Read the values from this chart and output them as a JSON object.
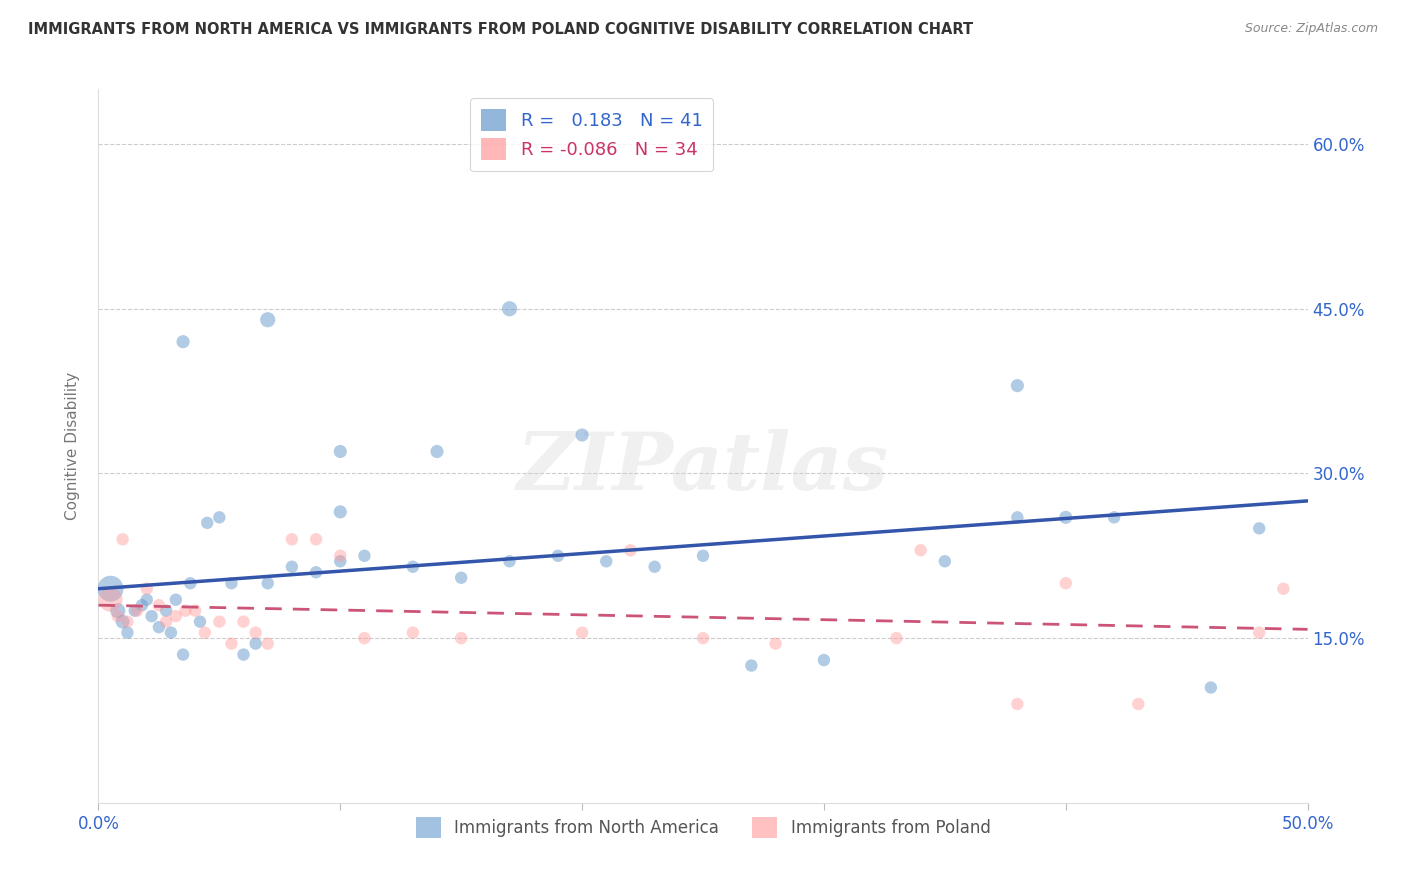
{
  "title": "IMMIGRANTS FROM NORTH AMERICA VS IMMIGRANTS FROM POLAND COGNITIVE DISABILITY CORRELATION CHART",
  "source": "Source: ZipAtlas.com",
  "ylabel": "Cognitive Disability",
  "xlim": [
    0.0,
    0.5
  ],
  "ylim": [
    0.0,
    0.65
  ],
  "grid_color": "#cccccc",
  "background_color": "#ffffff",
  "blue_color": "#6699cc",
  "pink_color": "#ff9999",
  "trendline_blue": "#3355aa",
  "trendline_pink": "#cc5577",
  "R_blue": 0.183,
  "N_blue": 41,
  "R_pink": -0.086,
  "N_pink": 34,
  "legend_label_blue": "Immigrants from North America",
  "legend_label_pink": "Immigrants from Poland",
  "blue_x": [
    0.005,
    0.008,
    0.01,
    0.012,
    0.015,
    0.018,
    0.02,
    0.022,
    0.025,
    0.028,
    0.03,
    0.032,
    0.035,
    0.038,
    0.042,
    0.045,
    0.05,
    0.055,
    0.06,
    0.065,
    0.07,
    0.08,
    0.09,
    0.1,
    0.11,
    0.13,
    0.15,
    0.17,
    0.19,
    0.21,
    0.23,
    0.25,
    0.27,
    0.3,
    0.35,
    0.38,
    0.42,
    0.46,
    0.48,
    0.07,
    0.17
  ],
  "blue_y": [
    0.195,
    0.175,
    0.165,
    0.155,
    0.175,
    0.18,
    0.185,
    0.17,
    0.16,
    0.175,
    0.155,
    0.185,
    0.135,
    0.2,
    0.165,
    0.255,
    0.26,
    0.2,
    0.135,
    0.145,
    0.2,
    0.215,
    0.21,
    0.22,
    0.225,
    0.215,
    0.205,
    0.22,
    0.225,
    0.22,
    0.215,
    0.225,
    0.125,
    0.13,
    0.22,
    0.26,
    0.26,
    0.105,
    0.25,
    0.44,
    0.45
  ],
  "blue_sizes": [
    350,
    120,
    100,
    80,
    80,
    80,
    80,
    80,
    80,
    80,
    80,
    80,
    80,
    80,
    80,
    80,
    80,
    80,
    80,
    80,
    80,
    80,
    80,
    80,
    80,
    80,
    80,
    80,
    80,
    80,
    80,
    80,
    80,
    80,
    80,
    80,
    80,
    80,
    80,
    120,
    120
  ],
  "blue_extra_x": [
    0.035,
    0.1,
    0.14,
    0.38,
    0.4,
    0.1,
    0.2
  ],
  "blue_extra_y": [
    0.42,
    0.32,
    0.32,
    0.38,
    0.26,
    0.265,
    0.335
  ],
  "pink_x": [
    0.005,
    0.008,
    0.012,
    0.016,
    0.02,
    0.025,
    0.028,
    0.032,
    0.036,
    0.04,
    0.044,
    0.05,
    0.055,
    0.06,
    0.065,
    0.07,
    0.08,
    0.09,
    0.1,
    0.11,
    0.13,
    0.15,
    0.2,
    0.22,
    0.25,
    0.28,
    0.33,
    0.34,
    0.38,
    0.4,
    0.43,
    0.48,
    0.49,
    0.01
  ],
  "pink_y": [
    0.185,
    0.17,
    0.165,
    0.175,
    0.195,
    0.18,
    0.165,
    0.17,
    0.175,
    0.175,
    0.155,
    0.165,
    0.145,
    0.165,
    0.155,
    0.145,
    0.24,
    0.24,
    0.225,
    0.15,
    0.155,
    0.15,
    0.155,
    0.23,
    0.15,
    0.145,
    0.15,
    0.23,
    0.09,
    0.2,
    0.09,
    0.155,
    0.195,
    0.24
  ],
  "pink_sizes": [
    300,
    80,
    80,
    80,
    80,
    80,
    80,
    80,
    80,
    80,
    80,
    80,
    80,
    80,
    80,
    80,
    80,
    80,
    80,
    80,
    80,
    80,
    80,
    80,
    80,
    80,
    80,
    80,
    80,
    80,
    80,
    80,
    80,
    80
  ],
  "watermark": "ZIPatlas",
  "watermark_color": "#d0d0d0"
}
